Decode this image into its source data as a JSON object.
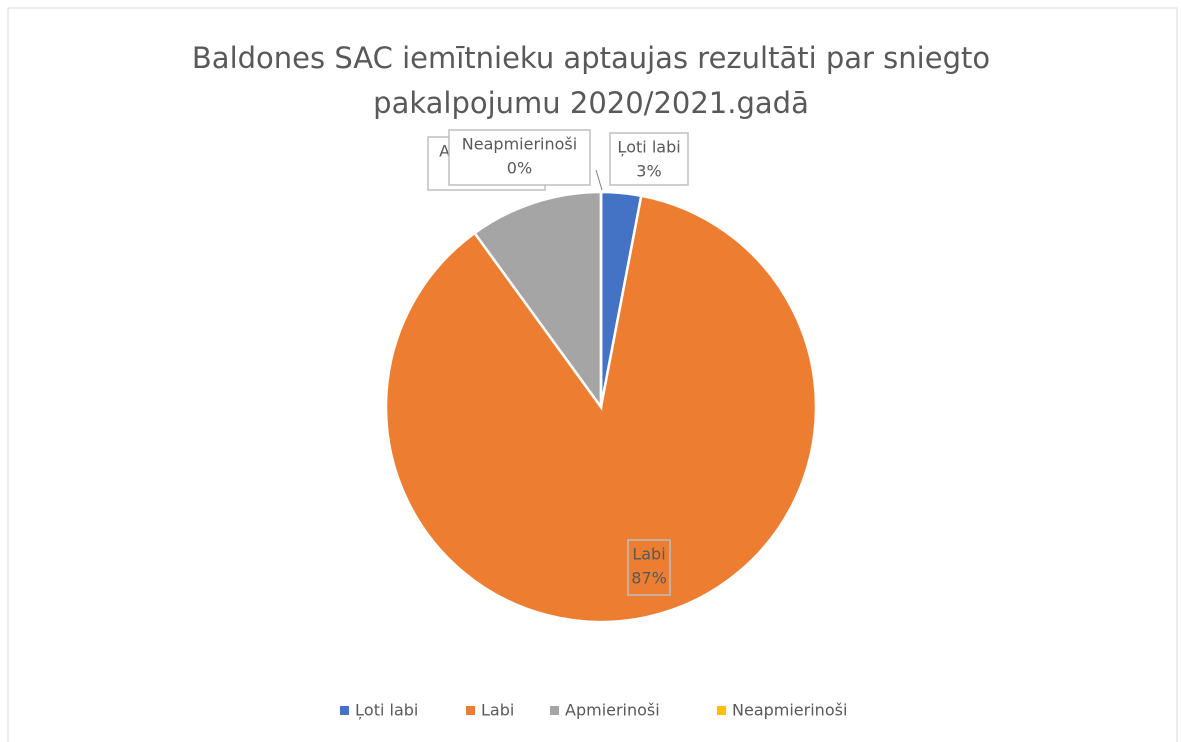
{
  "chart_data": {
    "type": "pie",
    "title": "Baldones SAC iemītnieku aptaujas rezultāti par sniegto pakalpojumu 2020/2021.gadā",
    "categories": [
      "Ļoti labi",
      "Labi",
      "Apmierinoši",
      "Neapmierinoši"
    ],
    "values": [
      3,
      87,
      10,
      0
    ],
    "value_labels": [
      "3%",
      "87%",
      "10%",
      "0%"
    ],
    "colors": [
      "#4472c4",
      "#ed7d31",
      "#a5a5a5",
      "#ffc000"
    ],
    "legend": "bottom"
  }
}
